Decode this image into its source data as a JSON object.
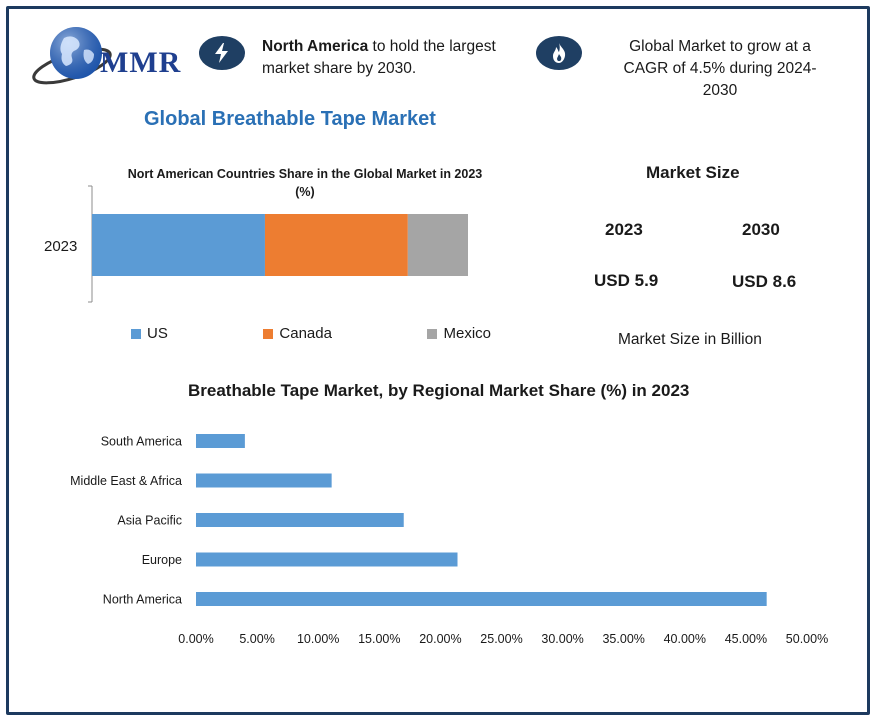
{
  "brand": {
    "logo_text": "MMR"
  },
  "highlights": [
    {
      "icon": "lightning-icon",
      "bold": "North America",
      "text_line1_rest": " to hold the largest",
      "text_line2": "market share by 2030."
    },
    {
      "icon": "flame-icon",
      "line1": "Global Market to grow at a",
      "line2": "CAGR of 4.5% during 2024-",
      "line3": "2030"
    }
  ],
  "main_title": "Global Breathable Tape Market",
  "colors": {
    "us": "#5b9bd5",
    "canada": "#ed7d31",
    "mexico": "#a5a5a5",
    "bar": "#5b9bd5",
    "title_blue": "#2a70b5",
    "frame": "#1d3a5f"
  },
  "market_size": {
    "title": "Market Size",
    "years": [
      "2023",
      "2030"
    ],
    "values": [
      "USD 5.9",
      "USD 8.6"
    ],
    "caption": "Market Size in Billion"
  },
  "chart_data": [
    {
      "type": "bar",
      "orientation": "horizontal",
      "stacked": true,
      "title_line1": "Nort American Countries Share in the Global Market in 2023",
      "title_line2": "(%)",
      "categories": [
        "2023"
      ],
      "series": [
        {
          "name": "US",
          "values": [
            46
          ]
        },
        {
          "name": "Canada",
          "values": [
            38
          ]
        },
        {
          "name": "Mexico",
          "values": [
            16
          ]
        }
      ],
      "legend_position": "bottom",
      "grid": false
    },
    {
      "type": "bar",
      "orientation": "horizontal",
      "title": "Breathable Tape Market, by Regional Market Share (%) in 2023",
      "categories": [
        "South America",
        "Middle East & Africa",
        "Asia Pacific",
        "Europe",
        "North America"
      ],
      "values": [
        4.0,
        11.1,
        17.0,
        21.4,
        46.7
      ],
      "xlim": [
        0,
        50
      ],
      "ticks": [
        "0.00%",
        "5.00%",
        "10.00%",
        "15.00%",
        "20.00%",
        "25.00%",
        "30.00%",
        "35.00%",
        "40.00%",
        "45.00%",
        "50.00%"
      ],
      "grid": false
    }
  ]
}
